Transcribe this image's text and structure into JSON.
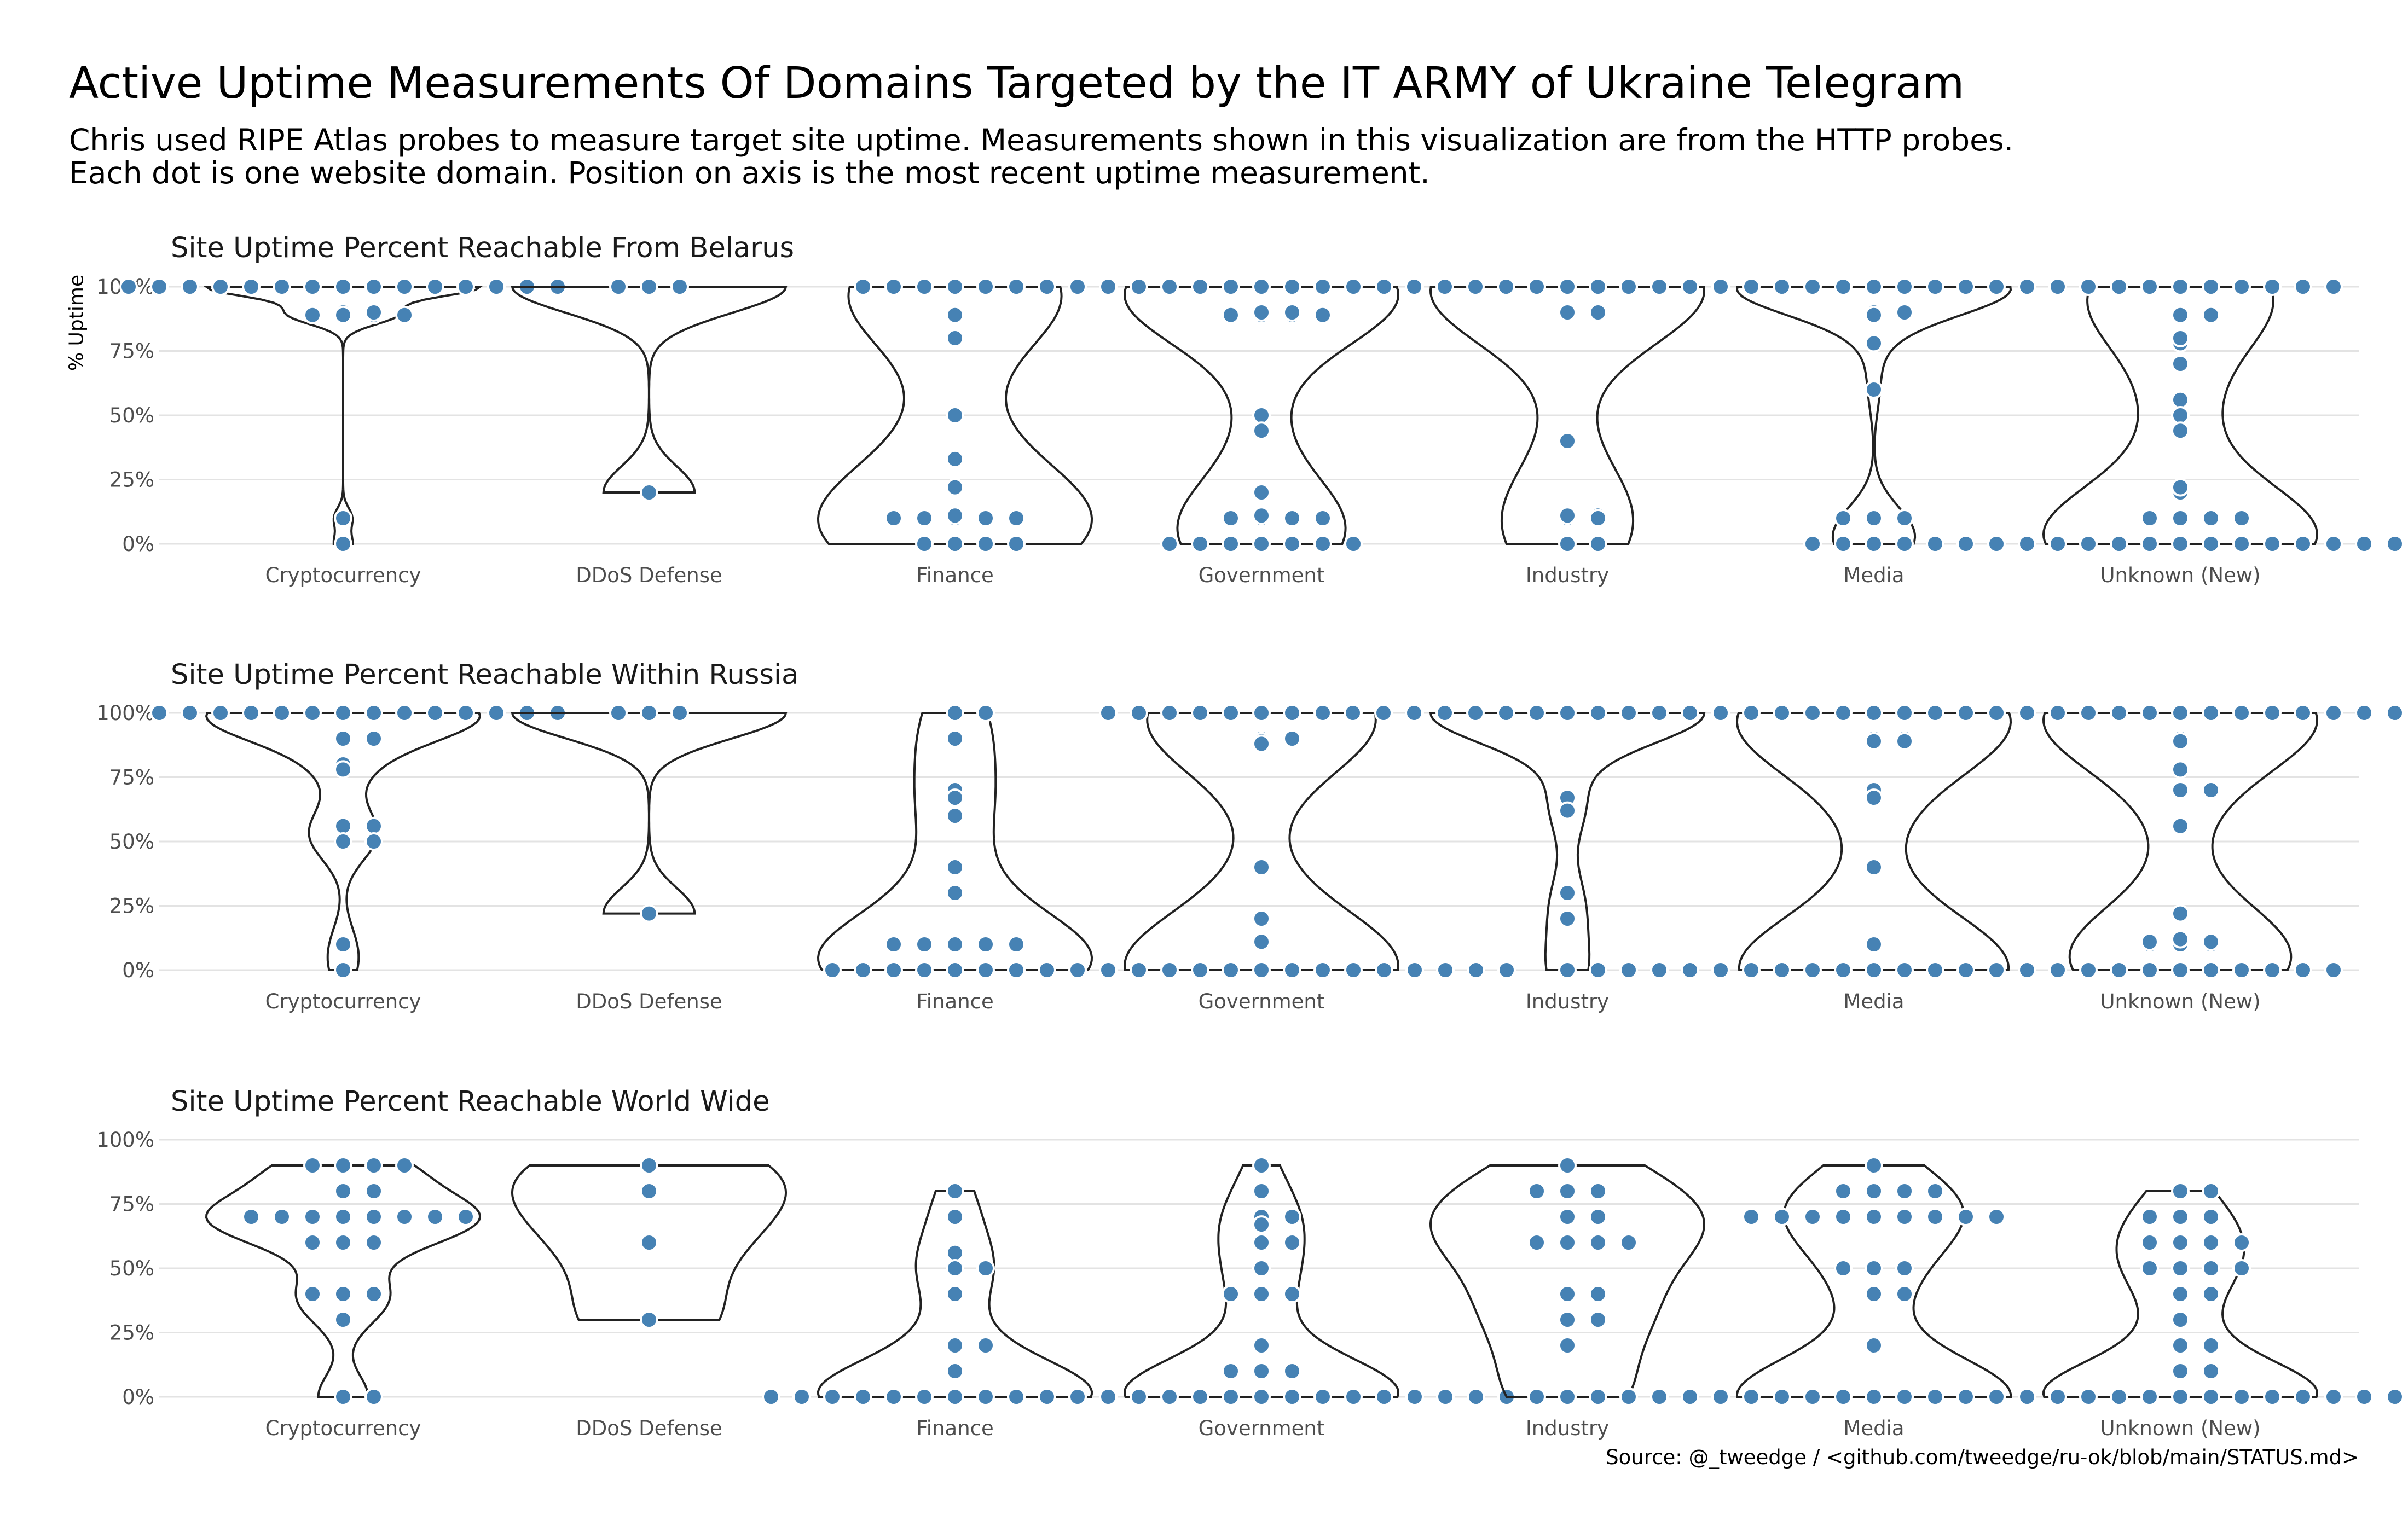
{
  "title": "Active Uptime Measurements Of Domains Targeted by the IT ARMY of Ukraine Telegram",
  "subtitle_lines": [
    "Chris used RIPE Atlas probes to measure target site uptime. Measurements shown in this visualization are from the HTTP probes.",
    "Each dot is one website domain. Position on axis is the most recent uptime measurement."
  ],
  "caption": "Source: @_tweedge / <github.com/tweedge/ru-ok/blob/main/STATUS.md>",
  "ylabel": "% Uptime",
  "colors": {
    "point": "#4682B4",
    "point_outline": "#ffffff",
    "violin": "#222222",
    "grid": "#e3e3e3",
    "tick_text": "#4d4d4d"
  },
  "chart_data": [
    {
      "type": "violin+beeswarm",
      "title": "Site Uptime Percent Reachable From Belarus",
      "ylabel": "% Uptime",
      "ylim": [
        0,
        100
      ],
      "yticks": [
        "0%",
        "25%",
        "50%",
        "75%",
        "100%"
      ],
      "categories": [
        "Cryptocurrency",
        "DDoS Defense",
        "Finance",
        "Government",
        "Industry",
        "Media",
        "Unknown (New)"
      ],
      "values": [
        [
          100,
          100,
          100,
          100,
          100,
          100,
          100,
          100,
          100,
          100,
          100,
          100,
          100,
          100,
          100,
          90,
          89,
          89,
          90,
          89,
          89,
          10,
          0
        ],
        [
          100,
          100,
          100,
          20
        ],
        [
          100,
          100,
          100,
          100,
          100,
          100,
          100,
          89,
          80,
          50,
          33,
          22,
          10,
          11,
          10,
          10,
          10,
          10,
          0,
          0,
          0,
          0
        ],
        [
          100,
          100,
          100,
          100,
          100,
          100,
          100,
          100,
          100,
          100,
          100,
          100,
          100,
          100,
          100,
          89,
          90,
          89,
          89,
          90,
          89,
          50,
          44,
          20,
          10,
          10,
          10,
          11,
          10,
          0,
          0,
          0,
          0,
          0,
          0,
          0
        ],
        [
          100,
          100,
          100,
          100,
          100,
          100,
          100,
          100,
          100,
          100,
          100,
          90,
          90,
          40,
          10,
          11,
          11,
          10,
          0,
          0
        ],
        [
          100,
          100,
          100,
          100,
          100,
          100,
          100,
          100,
          100,
          100,
          100,
          100,
          100,
          100,
          100,
          100,
          100,
          100,
          100,
          100,
          100,
          100,
          100,
          100,
          100,
          90,
          89,
          90,
          78,
          60,
          10,
          10,
          10,
          0,
          0,
          0,
          0,
          0,
          0
        ],
        [
          100,
          100,
          100,
          100,
          100,
          100,
          100,
          100,
          100,
          100,
          89,
          89,
          78,
          80,
          70,
          56,
          50,
          44,
          20,
          22,
          10,
          10,
          10,
          10,
          0,
          0,
          0,
          0,
          0,
          0,
          0,
          0,
          0,
          0,
          0,
          0,
          0,
          0,
          0
        ]
      ]
    },
    {
      "type": "violin+beeswarm",
      "title": "Site Uptime Percent Reachable Within Russia",
      "ylabel": "",
      "ylim": [
        0,
        100
      ],
      "yticks": [
        "0%",
        "25%",
        "50%",
        "75%",
        "100%"
      ],
      "categories": [
        "Cryptocurrency",
        "DDoS Defense",
        "Finance",
        "Government",
        "Industry",
        "Media",
        "Unknown (New)"
      ],
      "values": [
        [
          100,
          100,
          100,
          100,
          100,
          100,
          100,
          100,
          100,
          100,
          100,
          100,
          100,
          100,
          90,
          90,
          80,
          78,
          56,
          56,
          50,
          50,
          10,
          0
        ],
        [
          100,
          100,
          100,
          22
        ],
        [
          100,
          100,
          90,
          70,
          67,
          60,
          40,
          30,
          10,
          10,
          10,
          10,
          10,
          0,
          0,
          0,
          0,
          0,
          0,
          0,
          0,
          0
        ],
        [
          100,
          100,
          100,
          100,
          100,
          100,
          100,
          100,
          100,
          100,
          100,
          100,
          90,
          89,
          88,
          90,
          40,
          20,
          11,
          0,
          0,
          0,
          0,
          0,
          0,
          0,
          0,
          0,
          0,
          0,
          0,
          0,
          0,
          0,
          0,
          0
        ],
        [
          100,
          100,
          100,
          100,
          100,
          100,
          100,
          100,
          100,
          100,
          100,
          100,
          100,
          100,
          100,
          67,
          62,
          30,
          20,
          0,
          0
        ],
        [
          100,
          100,
          100,
          100,
          100,
          100,
          100,
          100,
          100,
          100,
          100,
          100,
          100,
          100,
          100,
          90,
          89,
          90,
          89,
          70,
          67,
          40,
          10,
          0,
          0,
          0,
          0,
          0,
          0,
          0,
          0,
          0,
          0,
          0,
          0,
          0,
          0,
          0,
          0,
          0,
          0
        ],
        [
          100,
          100,
          100,
          100,
          100,
          100,
          100,
          100,
          100,
          100,
          100,
          100,
          100,
          100,
          100,
          100,
          100,
          100,
          90,
          89,
          78,
          70,
          70,
          56,
          22,
          11,
          10,
          12,
          10,
          11,
          10,
          11,
          0,
          0,
          0,
          0,
          0,
          0,
          0,
          0,
          0,
          0
        ]
      ]
    },
    {
      "type": "violin+beeswarm",
      "title": "Site Uptime Percent Reachable World Wide",
      "ylabel": "",
      "ylim": [
        0,
        100
      ],
      "yticks": [
        "0%",
        "25%",
        "50%",
        "75%",
        "100%"
      ],
      "categories": [
        "Cryptocurrency",
        "DDoS Defense",
        "Finance",
        "Government",
        "Industry",
        "Media",
        "Unknown (New)"
      ],
      "values": [
        [
          90,
          90,
          90,
          90,
          80,
          80,
          70,
          70,
          70,
          70,
          70,
          70,
          70,
          70,
          60,
          60,
          60,
          40,
          40,
          40,
          30,
          0,
          0
        ],
        [
          90,
          80,
          60,
          30
        ],
        [
          80,
          70,
          56,
          50,
          50,
          40,
          20,
          20,
          10,
          0,
          0,
          0,
          0,
          0,
          0,
          0,
          0,
          0,
          0,
          0,
          0,
          0
        ],
        [
          90,
          80,
          70,
          70,
          67,
          60,
          60,
          50,
          40,
          40,
          40,
          20,
          10,
          10,
          10,
          0,
          0,
          0,
          0,
          0,
          0,
          0,
          0,
          0,
          0,
          0,
          0,
          0,
          0,
          0,
          0,
          0,
          0
        ],
        [
          90,
          80,
          80,
          80,
          70,
          70,
          60,
          60,
          60,
          60,
          40,
          40,
          30,
          30,
          20,
          0,
          0,
          0
        ],
        [
          90,
          80,
          80,
          80,
          80,
          70,
          70,
          70,
          70,
          70,
          70,
          70,
          70,
          70,
          50,
          50,
          50,
          40,
          40,
          20,
          0,
          0,
          0,
          0,
          0,
          0,
          0,
          0,
          0,
          0,
          0,
          0,
          0,
          0,
          0,
          0,
          0,
          0,
          0,
          0,
          0
        ],
        [
          80,
          80,
          70,
          70,
          70,
          60,
          60,
          60,
          60,
          50,
          50,
          50,
          50,
          40,
          40,
          30,
          20,
          20,
          10,
          10,
          0,
          0,
          0,
          0,
          0,
          0,
          0,
          0,
          0,
          0,
          0,
          0,
          0,
          0,
          0,
          0,
          0,
          0,
          0,
          0
        ]
      ]
    }
  ]
}
